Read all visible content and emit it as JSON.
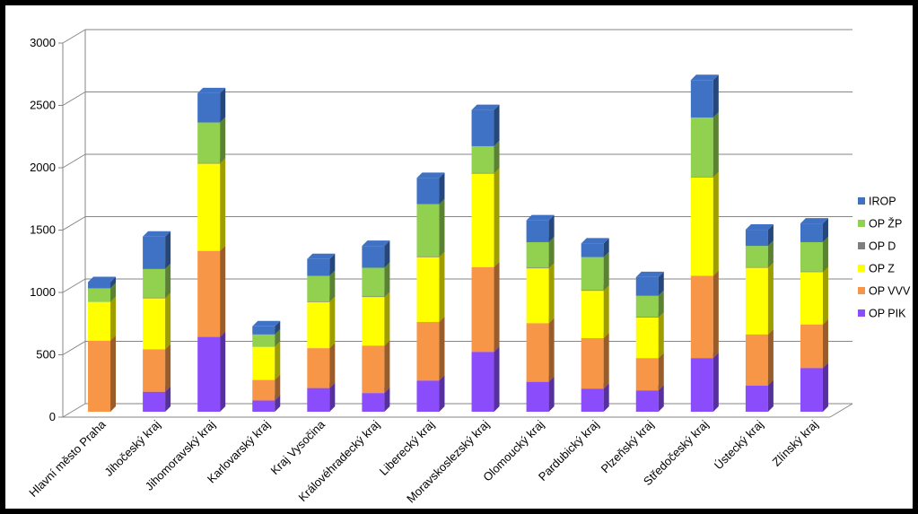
{
  "chart_data": {
    "type": "bar",
    "stacked": true,
    "three_d": true,
    "categories": [
      "Hlavní město Praha",
      "Jihočeský kraj",
      "Jihomoravský kraj",
      "Karlovarský kraj",
      "Kraj Vysočina",
      "Královéhradecký kraj",
      "Liberecký kraj",
      "Moravskoslezský kraj",
      "Olomoucký kraj",
      "Pardubický kraj",
      "Plzeňský kraj",
      "Středočeský kraj",
      "Ústecký kraj",
      "Zlínský kraj"
    ],
    "series": [
      {
        "name": "OP PIK",
        "color": "#8b4dfb",
        "values": [
          0,
          160,
          600,
          90,
          190,
          150,
          250,
          480,
          240,
          185,
          170,
          430,
          210,
          350
        ]
      },
      {
        "name": "OP VVV",
        "color": "#f79646",
        "values": [
          570,
          340,
          690,
          165,
          320,
          380,
          470,
          680,
          470,
          405,
          260,
          660,
          410,
          350
        ]
      },
      {
        "name": "OP Z",
        "color": "#ffff00",
        "values": [
          310,
          410,
          700,
          265,
          370,
          390,
          520,
          750,
          440,
          380,
          325,
          790,
          535,
          420
        ]
      },
      {
        "name": "OP D",
        "color": "#7f7f7f",
        "values": [
          0,
          5,
          5,
          0,
          5,
          5,
          5,
          5,
          5,
          5,
          5,
          5,
          5,
          5
        ]
      },
      {
        "name": "OP ŽP",
        "color": "#92d050",
        "values": [
          110,
          230,
          325,
          100,
          205,
          230,
          420,
          215,
          205,
          265,
          170,
          475,
          170,
          235
        ]
      },
      {
        "name": "IROP",
        "color": "#3f72c4",
        "values": [
          50,
          260,
          235,
          65,
          135,
          175,
          210,
          290,
          175,
          110,
          150,
          300,
          130,
          150
        ]
      }
    ],
    "yticks": [
      "0",
      "500",
      "1000",
      "1500",
      "2000",
      "2500",
      "3000"
    ],
    "ylim": [
      0,
      3000
    ],
    "legend_position": "right",
    "gridlines": true
  }
}
